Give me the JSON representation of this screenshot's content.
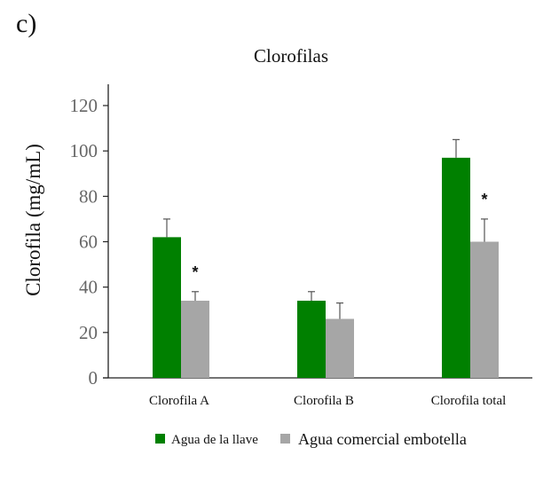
{
  "panel_label": "c)",
  "chart_data": {
    "type": "bar",
    "title": "Clorofilas",
    "xlabel": "",
    "ylabel": "Clorofila (mg/mL)",
    "ylim": [
      0,
      130
    ],
    "yticks": [
      0,
      20,
      40,
      60,
      80,
      100,
      120
    ],
    "grid": false,
    "legend_position": "bottom",
    "categories": [
      "Clorofila A",
      "Clorofila B",
      "Clorofila total"
    ],
    "series": [
      {
        "name": "Agua de la llave",
        "color": "#008000",
        "values": [
          62,
          34,
          97
        ],
        "error": [
          8,
          4,
          8
        ]
      },
      {
        "name": "Agua comercial embotella",
        "color": "#a6a6a6",
        "values": [
          34,
          26,
          60
        ],
        "error": [
          4,
          7,
          10
        ]
      }
    ],
    "annotations": [
      {
        "category": "Clorofila A",
        "text": "*"
      },
      {
        "category": "Clorofila total",
        "text": "*"
      }
    ]
  }
}
